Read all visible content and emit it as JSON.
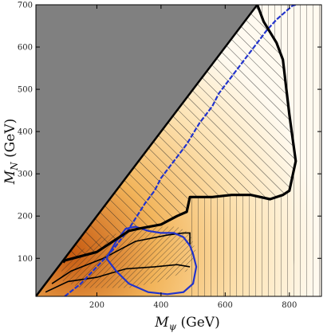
{
  "chart_data": {
    "type": "area",
    "title": "",
    "xlabel": {
      "symbol": "M",
      "sub": "ψ",
      "unit": " (GeV)"
    },
    "ylabel": {
      "symbol": "M",
      "sub": "N",
      "unit": " (GeV)"
    },
    "xlim": [
      10,
      900
    ],
    "ylim": [
      10,
      700
    ],
    "xticks": [
      200,
      400,
      600,
      800
    ],
    "yticks": [
      100,
      200,
      300,
      400,
      500,
      600,
      700
    ],
    "grid": false,
    "legend": "none",
    "colors": {
      "excluded_gray": "#808080",
      "region_light": "#fffaf0",
      "region_dark": "#c75a10",
      "boundary_black": "#000000",
      "contour_blue": "#2233cc"
    },
    "regions": [
      {
        "kind": "kinematically_forbidden_gray",
        "points": [
          [
            10,
            10
          ],
          [
            700,
            700
          ],
          [
            10,
            700
          ]
        ]
      },
      {
        "kind": "diagonal_hatched_band",
        "points": [
          [
            10,
            10
          ],
          [
            700,
            700
          ],
          [
            920,
            700
          ],
          [
            920,
            10
          ]
        ]
      },
      {
        "kind": "vertical_hatched_right",
        "points": [
          [
            700,
            700
          ],
          [
            920,
            700
          ],
          [
            920,
            10
          ],
          [
            820,
            10
          ],
          [
            800,
            260
          ],
          [
            820,
            330
          ],
          [
            800,
            440
          ],
          [
            780,
            570
          ]
        ]
      },
      {
        "kind": "dense_hatched_low_mass",
        "points": [
          [
            100,
            90
          ],
          [
            210,
            150
          ],
          [
            300,
            165
          ],
          [
            400,
            175
          ],
          [
            450,
            175
          ],
          [
            490,
            160
          ],
          [
            510,
            115
          ],
          [
            480,
            70
          ],
          [
            400,
            45
          ],
          [
            300,
            30
          ],
          [
            150,
            30
          ],
          [
            80,
            50
          ],
          [
            100,
            90
          ]
        ]
      }
    ],
    "black_boundary": {
      "x": [
        95,
        100,
        200,
        300,
        330,
        400,
        450,
        480,
        490,
        560,
        620,
        680,
        740,
        780,
        800,
        820,
        800,
        780,
        760,
        720,
        700
      ],
      "y": [
        90,
        95,
        115,
        165,
        170,
        180,
        200,
        210,
        245,
        245,
        250,
        250,
        240,
        250,
        260,
        330,
        440,
        570,
        610,
        660,
        700
      ]
    },
    "inner_black_contours": [
      {
        "x": [
          60,
          120,
          220,
          320,
          420,
          470,
          490,
          490
        ],
        "y": [
          40,
          70,
          100,
          140,
          155,
          160,
          160,
          130
        ]
      },
      {
        "x": [
          40,
          110,
          200,
          290,
          380,
          450,
          490
        ],
        "y": [
          20,
          45,
          55,
          75,
          80,
          85,
          80
        ]
      }
    ],
    "blue_contours": [
      {
        "name": "",
        "x": [
          100,
          150,
          200,
          250,
          300,
          350,
          380,
          400,
          420,
          450,
          480,
          500,
          520,
          540,
          560,
          580,
          600,
          620,
          650,
          680,
          700,
          730,
          760,
          790,
          810,
          820
        ],
        "y": [
          10,
          40,
          80,
          120,
          170,
          230,
          260,
          290,
          310,
          340,
          370,
          395,
          420,
          440,
          460,
          490,
          510,
          530,
          560,
          590,
          610,
          640,
          665,
          685,
          698,
          700
        ]
      },
      {
        "name": "",
        "x": [
          230,
          260,
          290,
          320,
          360,
          400,
          440,
          470,
          490,
          500,
          510,
          500,
          470,
          420,
          360,
          300,
          260,
          230
        ],
        "y": [
          100,
          140,
          170,
          175,
          165,
          160,
          160,
          150,
          130,
          110,
          80,
          40,
          20,
          15,
          20,
          40,
          70,
          100
        ]
      }
    ]
  }
}
